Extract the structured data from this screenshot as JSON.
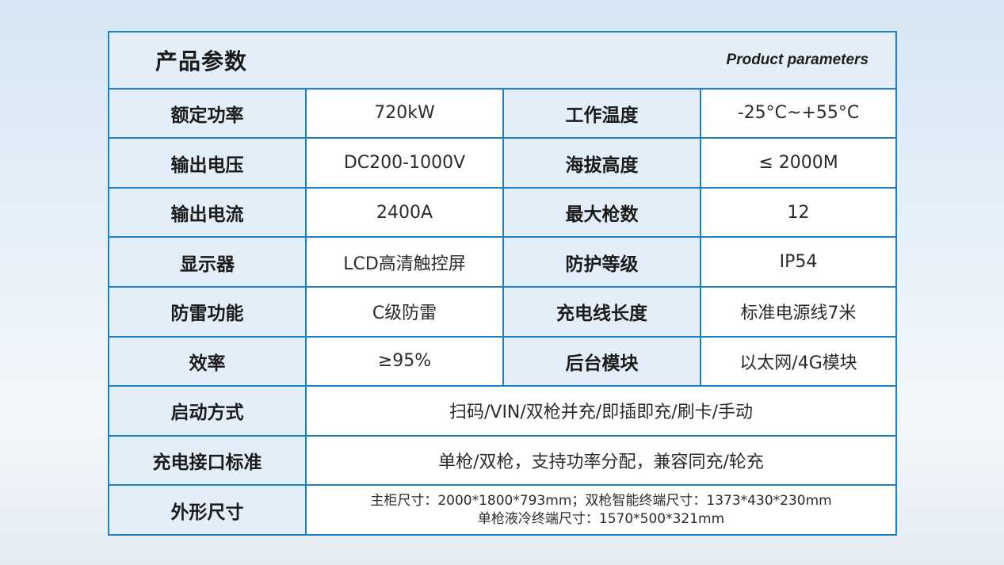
{
  "header": {
    "title_cn": "产品参数",
    "title_en": "Product parameters"
  },
  "rows": [
    {
      "label1": "额定功率",
      "value1": "720kW",
      "label2": "工作温度",
      "value2": "-25°C~+55°C"
    },
    {
      "label1": "输出电压",
      "value1": "DC200-1000V",
      "label2": "海拔高度",
      "value2": "≤ 2000M"
    },
    {
      "label1": "输出电流",
      "value1": "2400A",
      "label2": "最大枪数",
      "value2": "12"
    },
    {
      "label1": "显示器",
      "value1": "LCD高清触控屏",
      "label2": "防护等级",
      "value2": "IP54"
    },
    {
      "label1": "防雷功能",
      "value1": "C级防雷",
      "label2": "充电线长度",
      "value2": "标准电源线7米"
    },
    {
      "label1": "效率",
      "value1": "≥95%",
      "label2": "后台模块",
      "value2": "以太网/4G模块"
    }
  ],
  "wide_rows": [
    {
      "label": "启动方式",
      "value": "扫码/VIN/双枪并充/即插即充/刷卡/手动"
    },
    {
      "label": "充电接口标准",
      "value": "单枪/双枪，支持功率分配，兼容同充/轮充"
    }
  ],
  "dimensions": {
    "label": "外形尺寸",
    "line1": "主柜尺寸：2000*1800*793mm；双枪智能终端尺寸：1373*430*230mm",
    "line2": "单枪液冷终端尺寸：1570*500*321mm"
  }
}
